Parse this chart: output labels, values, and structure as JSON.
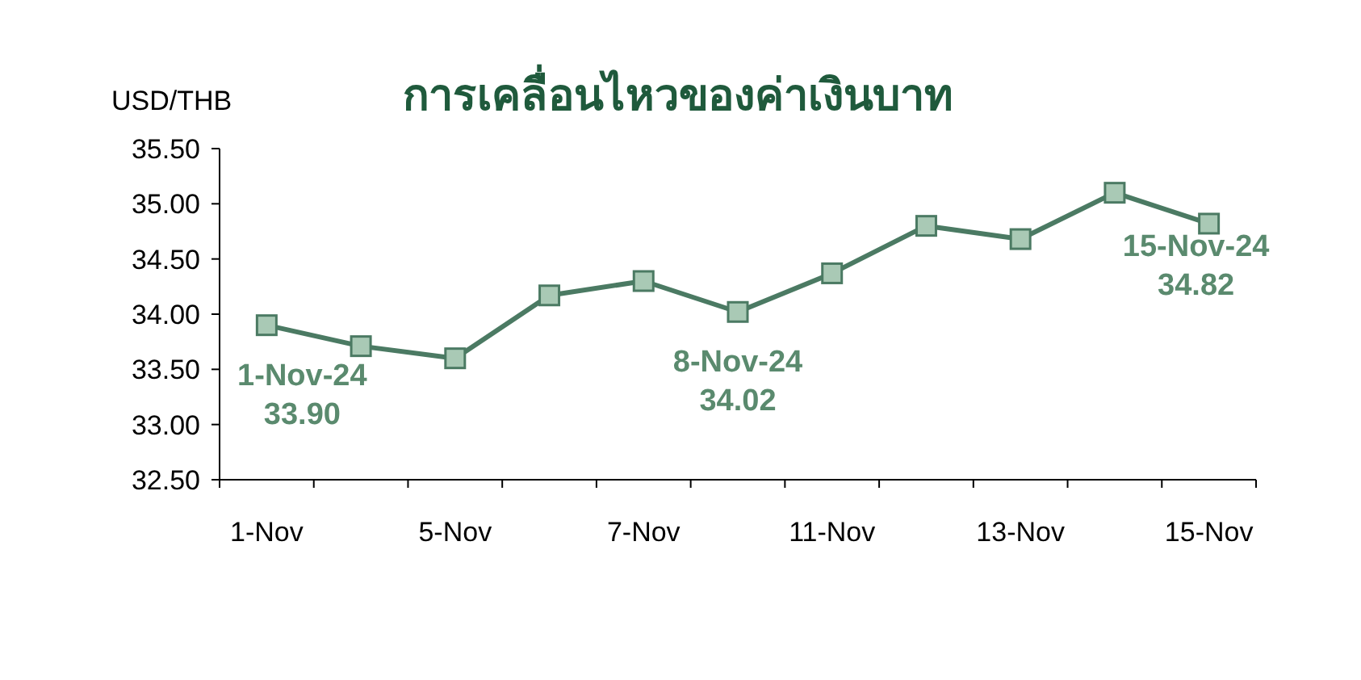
{
  "chart_data": {
    "type": "line",
    "title": "การเคลื่อนไหวของค่าเงินบาท",
    "ylabel": "USD/THB",
    "categories": [
      "1-Nov",
      null,
      "5-Nov",
      null,
      "7-Nov",
      null,
      "11-Nov",
      null,
      "13-Nov",
      null,
      "15-Nov"
    ],
    "values": [
      33.9,
      33.71,
      33.6,
      34.17,
      34.3,
      34.02,
      34.37,
      34.8,
      34.68,
      35.1,
      34.82
    ],
    "value_labels": [
      "33.90",
      null,
      null,
      null,
      null,
      "34.02",
      null,
      null,
      null,
      null,
      "34.82"
    ],
    "annotations": [
      {
        "text": "1-Nov-24",
        "y": 33.9
      },
      {
        "text": "8-Nov-24",
        "y": 34.02
      },
      {
        "text": "15-Nov-24",
        "y": 34.82
      }
    ],
    "color": "#4b7a63",
    "marker": "square",
    "line_style": "solid",
    "grid": false,
    "ylim": [
      32.5,
      35.5
    ],
    "yticks": [
      {
        "value": 32.5,
        "label": "32.50"
      },
      {
        "value": 33,
        "label": "33.00"
      },
      {
        "value": 33.5,
        "label": "33.50"
      },
      {
        "value": 34,
        "label": "34.00"
      },
      {
        "value": 34.5,
        "label": "34.50"
      },
      {
        "value": 35,
        "label": "35.00"
      },
      {
        "value": 35.5,
        "label": "35.50"
      }
    ]
  }
}
